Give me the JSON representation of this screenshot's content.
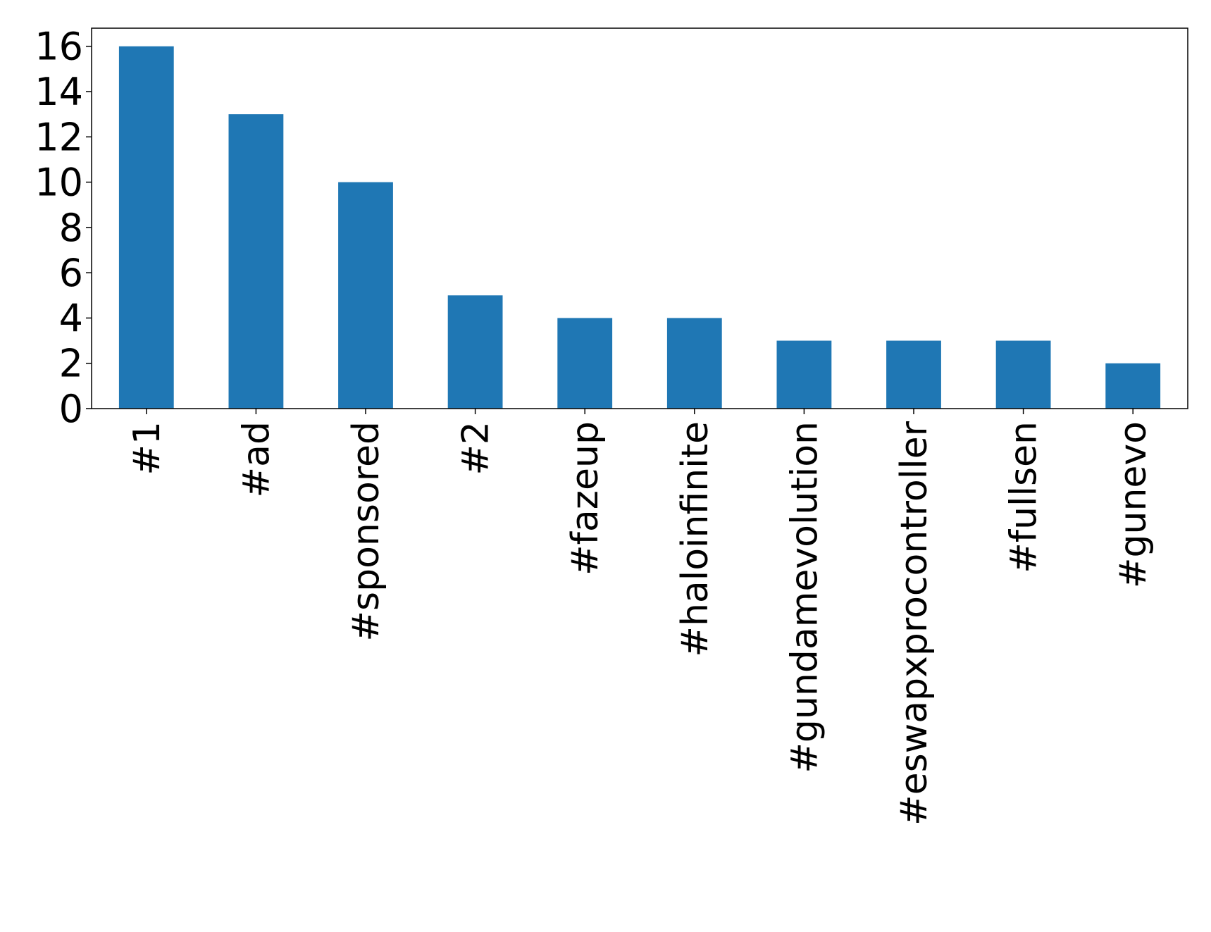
{
  "chart_data": {
    "type": "bar",
    "title": "",
    "xlabel": "",
    "ylabel": "",
    "categories": [
      "#1",
      "#ad",
      "#sponsored",
      "#2",
      "#fazeup",
      "#haloinfinite",
      "#gundamevolution",
      "#eswapxprocontroller",
      "#fullsen",
      "#gunevo"
    ],
    "values": [
      16,
      13,
      10,
      5,
      4,
      4,
      3,
      3,
      3,
      2
    ],
    "ylim": [
      0,
      16.8
    ],
    "yticks": [
      "0",
      "2",
      "4",
      "6",
      "8",
      "10",
      "12",
      "14",
      "16"
    ],
    "bar_color": "#1f77b4",
    "grid": false,
    "legend": "none"
  }
}
